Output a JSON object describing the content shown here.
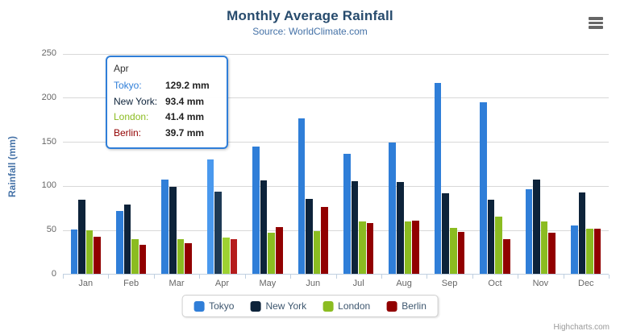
{
  "header": {
    "title": "Monthly Average Rainfall",
    "subtitle": "Source: WorldClimate.com"
  },
  "y_axis": {
    "title": "Rainfall (mm)"
  },
  "chart_data": {
    "type": "bar",
    "title": "Monthly Average Rainfall",
    "subtitle": "Source: WorldClimate.com",
    "xlabel": "",
    "ylabel": "Rainfall (mm)",
    "ylim": [
      0,
      250
    ],
    "y_ticks": [
      0,
      50,
      100,
      150,
      200,
      250
    ],
    "grid": true,
    "legend_position": "bottom",
    "categories": [
      "Jan",
      "Feb",
      "Mar",
      "Apr",
      "May",
      "Jun",
      "Jul",
      "Aug",
      "Sep",
      "Oct",
      "Nov",
      "Dec"
    ],
    "hovered_category": "Apr",
    "series": [
      {
        "name": "Tokyo",
        "color": "#2f7ed8",
        "hover_color": "#4a99ee",
        "values": [
          49.9,
          71.5,
          106.4,
          129.2,
          144.0,
          176.0,
          135.6,
          148.5,
          216.4,
          194.1,
          95.6,
          54.4
        ]
      },
      {
        "name": "New York",
        "color": "#0d233a",
        "hover_color": "#1e3a55",
        "values": [
          83.6,
          78.8,
          98.5,
          93.4,
          106.0,
          84.5,
          105.0,
          104.3,
          91.2,
          83.5,
          106.6,
          92.3
        ]
      },
      {
        "name": "London",
        "color": "#8bbc21",
        "hover_color": "#9ed232",
        "values": [
          48.9,
          38.8,
          39.3,
          41.4,
          47.0,
          48.3,
          59.0,
          59.6,
          52.4,
          65.2,
          59.3,
          51.2
        ]
      },
      {
        "name": "Berlin",
        "color": "#910000",
        "hover_color": "#b51c1c",
        "values": [
          42.4,
          33.2,
          34.5,
          39.7,
          52.6,
          75.5,
          57.4,
          60.4,
          47.6,
          39.1,
          46.8,
          51.1
        ]
      }
    ]
  },
  "tooltip": {
    "header": "Apr",
    "rows": [
      {
        "label": "Tokyo:",
        "value": "129.2 mm",
        "color": "#2f7ed8"
      },
      {
        "label": "New York:",
        "value": "93.4 mm",
        "color": "#0d233a"
      },
      {
        "label": "London:",
        "value": "41.4 mm",
        "color": "#8bbc21"
      },
      {
        "label": "Berlin:",
        "value": "39.7 mm",
        "color": "#910000"
      }
    ]
  },
  "legend": {
    "items": [
      {
        "label": "Tokyo",
        "color": "#2f7ed8"
      },
      {
        "label": "New York",
        "color": "#0d233a"
      },
      {
        "label": "London",
        "color": "#8bbc21"
      },
      {
        "label": "Berlin",
        "color": "#910000"
      }
    ]
  },
  "credit": "Highcharts.com"
}
